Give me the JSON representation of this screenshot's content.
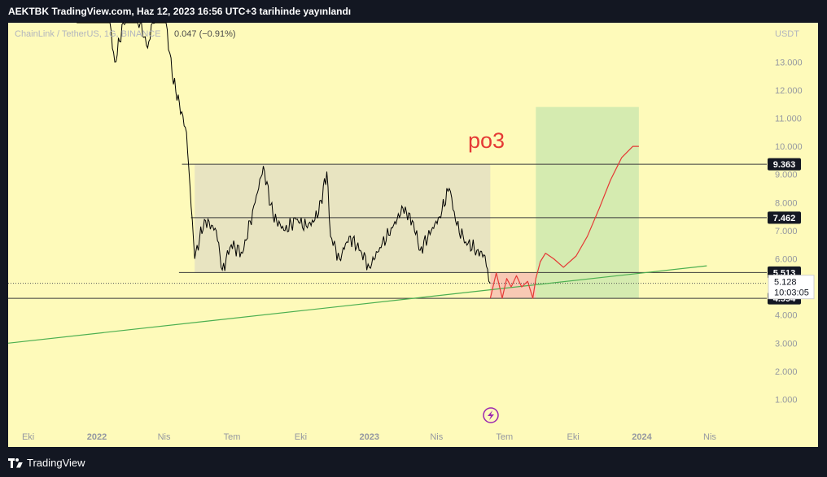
{
  "header": {
    "publish_text": "AEKTBK TradingView.com, Haz 12, 2023 16:56 UTC+3 tarihinde yayınlandı"
  },
  "footer": {
    "brand": "TradingView"
  },
  "colors": {
    "background": "#fefaba",
    "candles": "#000000",
    "trendline": "#4caf50",
    "drawing": "#e53935",
    "range_box": "#e8e4c1",
    "target_box": "#d5ebb0",
    "stop_box": "#f8c9b4"
  },
  "icons": {
    "snapshot": "lightning-icon"
  },
  "chart_data": {
    "type": "line",
    "symbol_text": "ChainLink / TetherUS, 1G, BINANCE",
    "change_text": "0.047 (−0.91%)",
    "currency": "USDT",
    "annotation": "po3",
    "price_tags": [
      {
        "value": "9.363",
        "price": 9.363
      },
      {
        "value": "7.462",
        "price": 7.462
      },
      {
        "value": "5.513",
        "price": 5.513
      },
      {
        "value": "4.594",
        "price": 4.594
      }
    ],
    "last_price": {
      "value": "5.128",
      "countdown": "10:03:05",
      "price": 5.128
    },
    "y_ticks": [
      {
        "label": "13.000",
        "price": 13
      },
      {
        "label": "12.000",
        "price": 12
      },
      {
        "label": "11.000",
        "price": 11
      },
      {
        "label": "10.000",
        "price": 10
      },
      {
        "label": "9.000",
        "price": 9
      },
      {
        "label": "8.000",
        "price": 8
      },
      {
        "label": "7.000",
        "price": 7
      },
      {
        "label": "6.000",
        "price": 6
      },
      {
        "label": "4.000",
        "price": 4
      },
      {
        "label": "3.000",
        "price": 3
      },
      {
        "label": "2.000",
        "price": 2
      },
      {
        "label": "1.000",
        "price": 1
      }
    ],
    "x_ticks": [
      {
        "label": "Eki",
        "date": "2021-10-01",
        "bold": false
      },
      {
        "label": "2022",
        "date": "2022-01-01",
        "bold": true
      },
      {
        "label": "Nis",
        "date": "2022-04-01",
        "bold": false
      },
      {
        "label": "Tem",
        "date": "2022-07-01",
        "bold": false
      },
      {
        "label": "Eki",
        "date": "2022-10-01",
        "bold": false
      },
      {
        "label": "2023",
        "date": "2023-01-01",
        "bold": true
      },
      {
        "label": "Nis",
        "date": "2023-04-01",
        "bold": false
      },
      {
        "label": "Tem",
        "date": "2023-07-01",
        "bold": false
      },
      {
        "label": "Eki",
        "date": "2023-10-01",
        "bold": false
      },
      {
        "label": "2024",
        "date": "2024-01-01",
        "bold": true
      },
      {
        "label": "Nis",
        "date": "2024-04-01",
        "bold": false
      }
    ],
    "price_series": [
      {
        "date": "2021-12-05",
        "price": 16.5
      },
      {
        "date": "2022-01-01",
        "price": 18.0
      },
      {
        "date": "2022-01-25",
        "price": 13.0
      },
      {
        "date": "2022-02-15",
        "price": 15.5
      },
      {
        "date": "2022-03-10",
        "price": 13.5
      },
      {
        "date": "2022-03-28",
        "price": 16.0
      },
      {
        "date": "2022-04-12",
        "price": 12.5
      },
      {
        "date": "2022-05-01",
        "price": 10.5
      },
      {
        "date": "2022-05-12",
        "price": 6.0
      },
      {
        "date": "2022-05-25",
        "price": 7.4
      },
      {
        "date": "2022-06-10",
        "price": 7.0
      },
      {
        "date": "2022-06-18",
        "price": 5.6
      },
      {
        "date": "2022-06-30",
        "price": 6.5
      },
      {
        "date": "2022-07-15",
        "price": 6.2
      },
      {
        "date": "2022-08-01",
        "price": 8.0
      },
      {
        "date": "2022-08-12",
        "price": 9.3
      },
      {
        "date": "2022-08-25",
        "price": 7.5
      },
      {
        "date": "2022-09-10",
        "price": 7.0
      },
      {
        "date": "2022-09-25",
        "price": 7.4
      },
      {
        "date": "2022-10-10",
        "price": 7.1
      },
      {
        "date": "2022-10-25",
        "price": 7.6
      },
      {
        "date": "2022-11-05",
        "price": 9.1
      },
      {
        "date": "2022-11-10",
        "price": 6.8
      },
      {
        "date": "2022-11-22",
        "price": 6.0
      },
      {
        "date": "2022-12-05",
        "price": 6.8
      },
      {
        "date": "2022-12-20",
        "price": 6.3
      },
      {
        "date": "2023-01-01",
        "price": 5.7
      },
      {
        "date": "2023-01-15",
        "price": 6.4
      },
      {
        "date": "2023-02-01",
        "price": 7.1
      },
      {
        "date": "2023-02-15",
        "price": 7.8
      },
      {
        "date": "2023-03-01",
        "price": 7.3
      },
      {
        "date": "2023-03-10",
        "price": 6.3
      },
      {
        "date": "2023-03-25",
        "price": 7.0
      },
      {
        "date": "2023-04-05",
        "price": 7.5
      },
      {
        "date": "2023-04-18",
        "price": 8.5
      },
      {
        "date": "2023-04-28",
        "price": 7.2
      },
      {
        "date": "2023-05-10",
        "price": 6.6
      },
      {
        "date": "2023-05-25",
        "price": 6.3
      },
      {
        "date": "2023-06-05",
        "price": 6.1
      },
      {
        "date": "2023-06-10",
        "price": 5.2
      },
      {
        "date": "2023-06-12",
        "price": 5.128
      }
    ],
    "range_box": {
      "start": "2022-05-12",
      "end": "2023-06-12",
      "top": 9.363,
      "bottom": 5.513
    },
    "target_box": {
      "start": "2023-08-12",
      "end": "2023-12-28",
      "top": 11.4,
      "bottom": 4.594
    },
    "stop_box": {
      "start": "2023-06-12",
      "end": "2023-08-12",
      "top": 5.513,
      "bottom": 4.594
    },
    "horizontal_lines": [
      {
        "price": 9.363,
        "start": "2022-04-25"
      },
      {
        "price": 7.462,
        "start": "2022-05-07"
      },
      {
        "price": 5.513,
        "start": "2022-04-21"
      },
      {
        "price": 4.594,
        "start": "2021-08-01"
      }
    ],
    "trendline": {
      "x": [
        "2021-08-01",
        "2024-03-28"
      ],
      "y": [
        3.0,
        5.75
      ]
    },
    "projection": {
      "x": [
        "2023-06-12",
        "2023-06-20",
        "2023-06-28",
        "2023-07-04",
        "2023-07-10",
        "2023-07-17",
        "2023-07-24",
        "2023-08-01",
        "2023-08-08",
        "2023-08-12",
        "2023-08-18",
        "2023-08-25",
        "2023-09-05",
        "2023-09-18",
        "2023-10-05",
        "2023-10-20",
        "2023-11-05",
        "2023-11-20",
        "2023-12-05",
        "2023-12-20",
        "2023-12-28"
      ],
      "y": [
        4.6,
        5.5,
        4.6,
        5.3,
        5.0,
        5.4,
        5.0,
        5.2,
        4.6,
        5.3,
        5.9,
        6.2,
        6.0,
        5.7,
        6.1,
        6.8,
        7.8,
        8.8,
        9.6,
        10.0,
        10.0
      ]
    }
  }
}
